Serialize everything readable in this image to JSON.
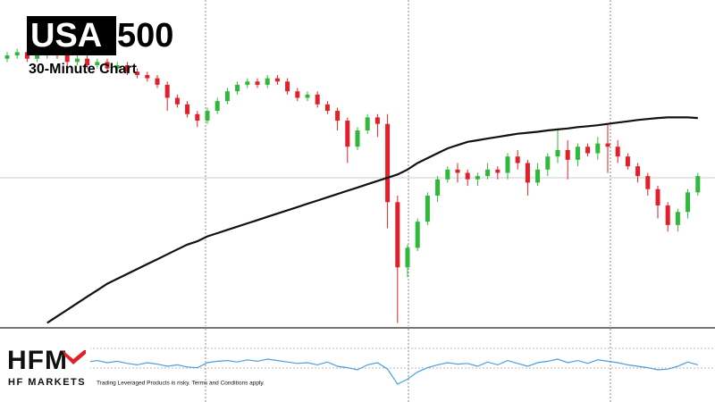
{
  "header": {
    "symbol": "USA",
    "symbol_suffix": "500",
    "subtitle": "30-Minute Chart"
  },
  "footer": {
    "logo": "HFM",
    "brand": "HF MARKETS",
    "disclaimer": "Trading Leveraged Products is risky. Terms and Conditions apply."
  },
  "chart_data": [
    {
      "type": "candlestick",
      "ylim": [
        0,
        100
      ],
      "series": [
        {
          "up_color": "#2fb83a",
          "down_color": "#e3202a",
          "open": [
            82,
            83,
            84,
            82,
            83,
            84,
            83,
            81,
            82,
            80,
            81,
            79,
            80,
            78,
            77,
            76,
            74,
            70,
            68,
            65,
            63,
            66,
            69,
            72,
            74,
            75,
            74,
            76,
            75,
            72,
            70,
            71,
            68,
            66,
            63,
            55,
            60,
            64,
            62,
            38,
            18,
            24,
            32,
            40,
            45,
            48,
            47,
            45,
            46,
            48,
            47,
            52,
            50,
            44,
            48,
            52,
            54,
            51,
            55,
            53,
            56,
            55,
            52,
            49,
            46,
            42,
            37,
            31,
            35,
            41
          ],
          "high": [
            84,
            85,
            85,
            84,
            85,
            85,
            84,
            83,
            83,
            82,
            82,
            81,
            81,
            79,
            78,
            77,
            75,
            71,
            69,
            66,
            67,
            70,
            73,
            75,
            76,
            76,
            77,
            77,
            76,
            73,
            72,
            72,
            69,
            67,
            64,
            61,
            65,
            65,
            65,
            40,
            25,
            33,
            41,
            46,
            49,
            50,
            48,
            47,
            50,
            49,
            53,
            54,
            51,
            50,
            53,
            60,
            57,
            56,
            56,
            58,
            62,
            57,
            53,
            50,
            47,
            43,
            38,
            36,
            42,
            47
          ],
          "low": [
            81,
            82,
            81,
            81,
            82,
            82,
            80,
            80,
            79,
            79,
            78,
            78,
            77,
            76,
            75,
            73,
            66,
            67,
            64,
            61,
            62,
            65,
            68,
            71,
            73,
            73,
            73,
            74,
            71,
            69,
            69,
            67,
            65,
            60,
            50,
            54,
            59,
            58,
            30,
            1,
            15,
            23,
            31,
            38,
            44,
            44,
            43,
            43,
            45,
            45,
            45,
            48,
            40,
            43,
            46,
            50,
            45,
            49,
            52,
            51,
            47,
            50,
            48,
            44,
            40,
            33,
            29,
            29,
            33,
            40
          ],
          "close": [
            83,
            84,
            82,
            83,
            84,
            83,
            81,
            82,
            80,
            81,
            79,
            80,
            78,
            77,
            76,
            74,
            70,
            68,
            65,
            63,
            66,
            69,
            72,
            74,
            75,
            74,
            76,
            75,
            72,
            70,
            71,
            68,
            66,
            63,
            55,
            60,
            64,
            62,
            38,
            18,
            24,
            32,
            40,
            45,
            48,
            47,
            45,
            46,
            48,
            47,
            52,
            50,
            44,
            48,
            52,
            54,
            51,
            55,
            53,
            56,
            55,
            52,
            49,
            46,
            42,
            37,
            31,
            35,
            41,
            46
          ]
        },
        {
          "type": "line",
          "color": "#111111",
          "values": [
            null,
            null,
            null,
            null,
            1,
            3,
            5,
            7,
            9,
            11,
            13,
            14.5,
            16,
            17.5,
            19,
            20.5,
            22,
            23.5,
            25,
            26,
            27.5,
            28.5,
            29.5,
            30.5,
            31.5,
            32.5,
            33.5,
            34.5,
            35.5,
            36.5,
            37.5,
            38.5,
            39.5,
            40.5,
            41.5,
            42.5,
            43.5,
            44.5,
            45.5,
            46.5,
            48,
            50,
            51.5,
            53,
            54.5,
            55.5,
            56.5,
            57,
            57.5,
            58,
            58.5,
            59,
            59.3,
            59.6,
            60,
            60.3,
            60.6,
            61,
            61.3,
            61.6,
            62,
            62.4,
            62.8,
            63.2,
            63.5,
            63.8,
            64,
            64,
            64,
            63.8
          ]
        }
      ]
    },
    {
      "type": "line",
      "ylim": [
        0,
        100
      ],
      "color": "#4a9fe0",
      "values": [
        58,
        60,
        59,
        61,
        60,
        58,
        57,
        59,
        56,
        58,
        55,
        57,
        54,
        52,
        55,
        53,
        50,
        52,
        49,
        48,
        55,
        57,
        58,
        56,
        59,
        57,
        60,
        58,
        56,
        54,
        55,
        52,
        56,
        50,
        48,
        45,
        52,
        55,
        46,
        25,
        32,
        42,
        48,
        52,
        55,
        53,
        54,
        50,
        56,
        52,
        58,
        54,
        50,
        55,
        57,
        60,
        55,
        58,
        54,
        59,
        57,
        55,
        52,
        50,
        48,
        45,
        46,
        50,
        56,
        52
      ]
    }
  ]
}
